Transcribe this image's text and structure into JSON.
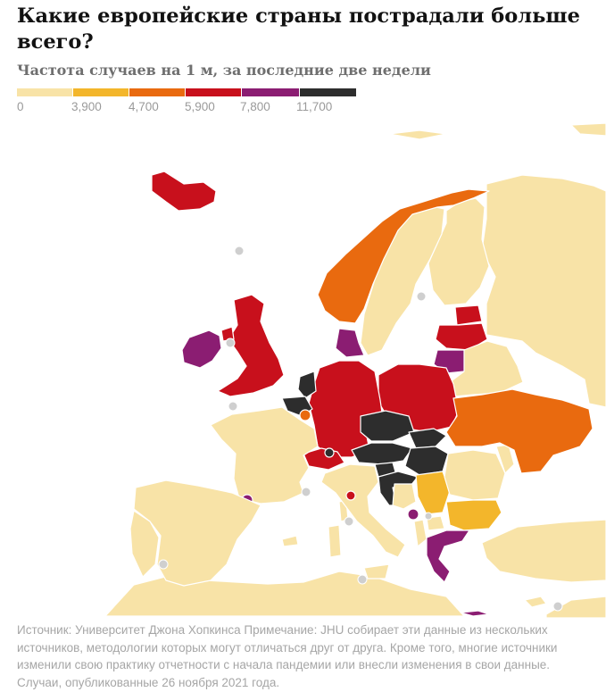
{
  "header": {
    "title": "Какие европейские страны пострадали больше всего?",
    "subtitle": "Частота случаев на 1 м, за последние две недели"
  },
  "legend": {
    "colors": [
      "#f8e3a7",
      "#f3b62b",
      "#e96a0f",
      "#c8101c",
      "#8b1d72",
      "#2d2d2d"
    ],
    "ticks": [
      "0",
      "3,900",
      "4,700",
      "5,900",
      "7,800",
      "11,700"
    ]
  },
  "map": {
    "colors": {
      "water": "#ffffff",
      "border": "#ffffff",
      "no_data_dot": "#cfcfcf"
    },
    "countries": [
      {
        "name": "iceland",
        "bin": 3
      },
      {
        "name": "ireland",
        "bin": 4
      },
      {
        "name": "united-kingdom",
        "bin": 3
      },
      {
        "name": "norway",
        "bin": 2
      },
      {
        "name": "sweden",
        "bin": 0
      },
      {
        "name": "finland",
        "bin": 0
      },
      {
        "name": "russia",
        "bin": 0
      },
      {
        "name": "estonia",
        "bin": 3
      },
      {
        "name": "latvia",
        "bin": 3
      },
      {
        "name": "lithuania",
        "bin": 4
      },
      {
        "name": "belarus",
        "bin": 0
      },
      {
        "name": "denmark",
        "bin": 4
      },
      {
        "name": "netherlands",
        "bin": 5
      },
      {
        "name": "belgium",
        "bin": 5
      },
      {
        "name": "luxembourg",
        "bin": 2
      },
      {
        "name": "germany",
        "bin": 3
      },
      {
        "name": "poland",
        "bin": 3
      },
      {
        "name": "ukraine",
        "bin": 2
      },
      {
        "name": "czechia",
        "bin": 5
      },
      {
        "name": "slovakia",
        "bin": 5
      },
      {
        "name": "austria",
        "bin": 5
      },
      {
        "name": "hungary",
        "bin": 5
      },
      {
        "name": "switzerland",
        "bin": 3
      },
      {
        "name": "liechtenstein",
        "bin": 5
      },
      {
        "name": "slovenia",
        "bin": 5
      },
      {
        "name": "croatia",
        "bin": 5
      },
      {
        "name": "bosnia",
        "bin": 0
      },
      {
        "name": "serbia",
        "bin": 1
      },
      {
        "name": "montenegro",
        "bin": 4
      },
      {
        "name": "albania",
        "bin": 0
      },
      {
        "name": "north-macedonia",
        "bin": 0
      },
      {
        "name": "bulgaria",
        "bin": 1
      },
      {
        "name": "romania",
        "bin": 0
      },
      {
        "name": "moldova",
        "bin": 0
      },
      {
        "name": "greece",
        "bin": 4
      },
      {
        "name": "turkey",
        "bin": 0
      },
      {
        "name": "france",
        "bin": 0
      },
      {
        "name": "spain",
        "bin": 0
      },
      {
        "name": "portugal",
        "bin": 0
      },
      {
        "name": "italy",
        "bin": 0
      },
      {
        "name": "andorra",
        "bin": 4
      },
      {
        "name": "san-marino",
        "bin": 3
      },
      {
        "name": "cyprus",
        "bin": 0
      },
      {
        "name": "north-africa",
        "bin": 0
      }
    ]
  },
  "source": {
    "text": "Источник: Университет Джона Хопкинса Примечание: JHU собирает эти данные из нескольких источников, методологии которых могут отличаться друг от друга. Кроме того, многие источники изменили свою практику отчетности с начала пандемии или внесли изменения в свои данные. Случаи, опубликованные 26 ноября 2021 года."
  }
}
